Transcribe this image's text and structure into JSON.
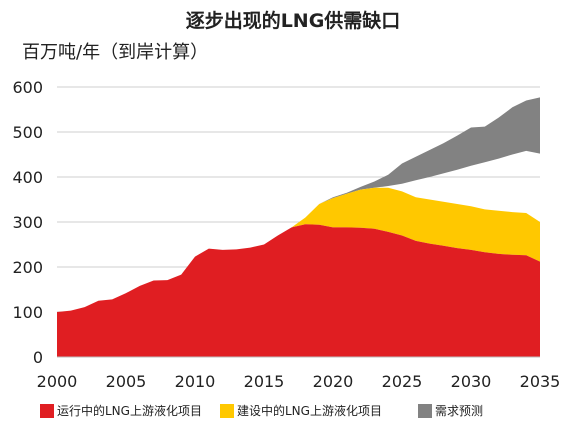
{
  "title": "逐步出现的LNG供需缺口",
  "unit_label": "百万吨/年（到岸计算）",
  "chart_data": {
    "type": "area",
    "title": "逐步出现的LNG供需缺口",
    "ylabel": "百万吨/年（到岸计算）",
    "xlabel": "",
    "xlim": [
      2000,
      2035
    ],
    "ylim": [
      0,
      600
    ],
    "x_ticks": [
      "2000",
      "2005",
      "2010",
      "2015",
      "2020",
      "2025",
      "2030",
      "2035"
    ],
    "y_ticks": [
      "0",
      "100",
      "200",
      "300",
      "400",
      "500",
      "600"
    ],
    "grid": "horizontal",
    "legend_position": "bottom",
    "series": [
      {
        "name": "运行中的LNG上游液化项目",
        "color": "#e01e22",
        "points": [
          [
            2000,
            100
          ],
          [
            2001,
            103
          ],
          [
            2002,
            111
          ],
          [
            2003,
            125
          ],
          [
            2004,
            128
          ],
          [
            2005,
            142
          ],
          [
            2006,
            158
          ],
          [
            2007,
            170
          ],
          [
            2008,
            171
          ],
          [
            2009,
            183
          ],
          [
            2010,
            223
          ],
          [
            2011,
            241
          ],
          [
            2012,
            238
          ],
          [
            2013,
            239
          ],
          [
            2014,
            243
          ],
          [
            2015,
            250
          ],
          [
            2016,
            270
          ],
          [
            2017,
            288
          ],
          [
            2018,
            295
          ],
          [
            2019,
            294
          ],
          [
            2020,
            288
          ],
          [
            2021,
            288
          ],
          [
            2022,
            287
          ],
          [
            2023,
            285
          ],
          [
            2024,
            278
          ],
          [
            2025,
            270
          ],
          [
            2026,
            258
          ],
          [
            2027,
            252
          ],
          [
            2028,
            247
          ],
          [
            2029,
            242
          ],
          [
            2030,
            238
          ],
          [
            2031,
            233
          ],
          [
            2032,
            229
          ],
          [
            2033,
            227
          ],
          [
            2034,
            226
          ],
          [
            2035,
            212
          ]
        ]
      },
      {
        "name": "建设中的LNG上游液化项目",
        "color": "#ffc800",
        "points": [
          [
            2017,
            288
          ],
          [
            2018,
            310
          ],
          [
            2019,
            340
          ],
          [
            2020,
            353
          ],
          [
            2021,
            363
          ],
          [
            2022,
            372
          ],
          [
            2023,
            376
          ],
          [
            2024,
            376
          ],
          [
            2025,
            368
          ],
          [
            2026,
            355
          ],
          [
            2027,
            350
          ],
          [
            2028,
            345
          ],
          [
            2029,
            340
          ],
          [
            2030,
            335
          ],
          [
            2031,
            328
          ],
          [
            2032,
            325
          ],
          [
            2033,
            322
          ],
          [
            2034,
            320
          ],
          [
            2035,
            300
          ]
        ]
      },
      {
        "name": "需求预测",
        "color": "#828282",
        "points": [
          [
            2019,
            340
          ],
          [
            2020,
            355
          ],
          [
            2021,
            365
          ],
          [
            2022,
            378
          ],
          [
            2023,
            390
          ],
          [
            2024,
            405
          ],
          [
            2025,
            430
          ],
          [
            2026,
            445
          ],
          [
            2027,
            460
          ],
          [
            2028,
            475
          ],
          [
            2029,
            492
          ],
          [
            2030,
            510
          ],
          [
            2031,
            512
          ],
          [
            2032,
            532
          ],
          [
            2033,
            555
          ],
          [
            2034,
            570
          ],
          [
            2035,
            577
          ]
        ]
      }
    ],
    "demand_lower_edge": [
      [
        2019,
        340
      ],
      [
        2020,
        353
      ],
      [
        2021,
        363
      ],
      [
        2022,
        372
      ],
      [
        2023,
        376
      ],
      [
        2024,
        380
      ],
      [
        2025,
        385
      ],
      [
        2026,
        393
      ],
      [
        2027,
        400
      ],
      [
        2028,
        408
      ],
      [
        2029,
        416
      ],
      [
        2030,
        425
      ],
      [
        2031,
        433
      ],
      [
        2032,
        441
      ],
      [
        2033,
        450
      ],
      [
        2034,
        458
      ],
      [
        2035,
        452
      ]
    ]
  }
}
